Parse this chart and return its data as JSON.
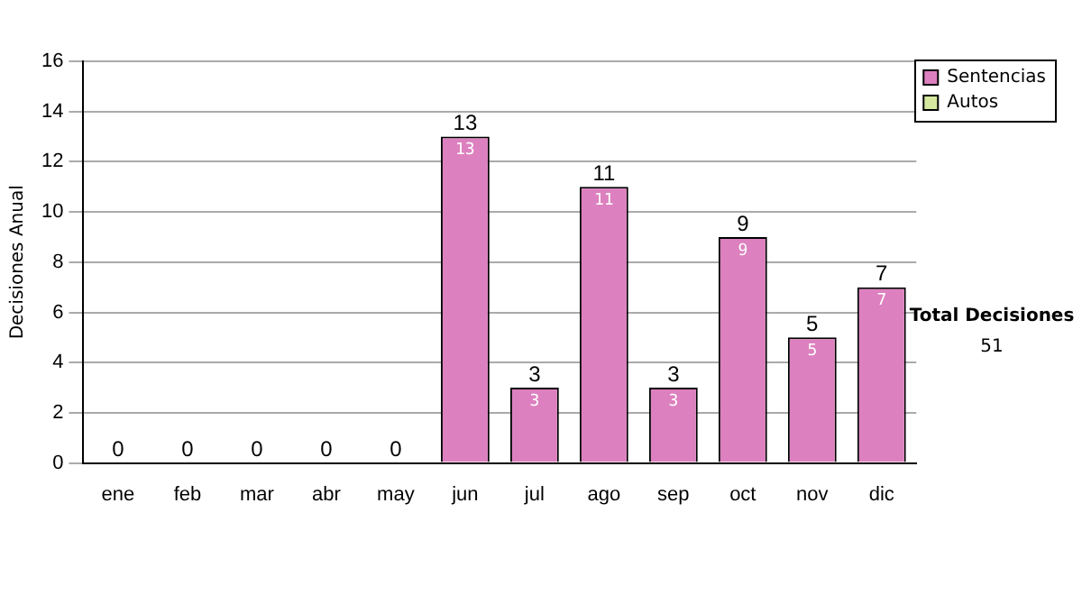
{
  "chart_data": {
    "type": "bar",
    "ylabel": "Decisiones Anual",
    "categories": [
      "ene",
      "feb",
      "mar",
      "abr",
      "may",
      "jun",
      "jul",
      "ago",
      "sep",
      "oct",
      "nov",
      "dic"
    ],
    "series": [
      {
        "name": "Sentencias",
        "color": "#dd80bf",
        "values": [
          0,
          0,
          0,
          0,
          0,
          13,
          3,
          11,
          3,
          9,
          5,
          7
        ],
        "value_labels": [
          null,
          null,
          null,
          null,
          null,
          "13",
          "3",
          "11",
          "3",
          "9",
          "5",
          "7"
        ]
      },
      {
        "name": "Autos",
        "color": "#d4e8a0",
        "values": [
          0,
          0,
          0,
          0,
          0,
          0,
          0,
          0,
          0,
          0,
          0,
          0
        ]
      }
    ],
    "stacked": true,
    "totals": [
      "0",
      "0",
      "0",
      "0",
      "0",
      "13",
      "3",
      "11",
      "3",
      "9",
      "5",
      "7"
    ],
    "ylim": [
      0,
      16
    ],
    "yticks": [
      0,
      2,
      4,
      6,
      8,
      10,
      12,
      14,
      16
    ],
    "grid": "y",
    "legend": "right",
    "annotations": [
      "Total Decisiones",
      "51"
    ]
  }
}
